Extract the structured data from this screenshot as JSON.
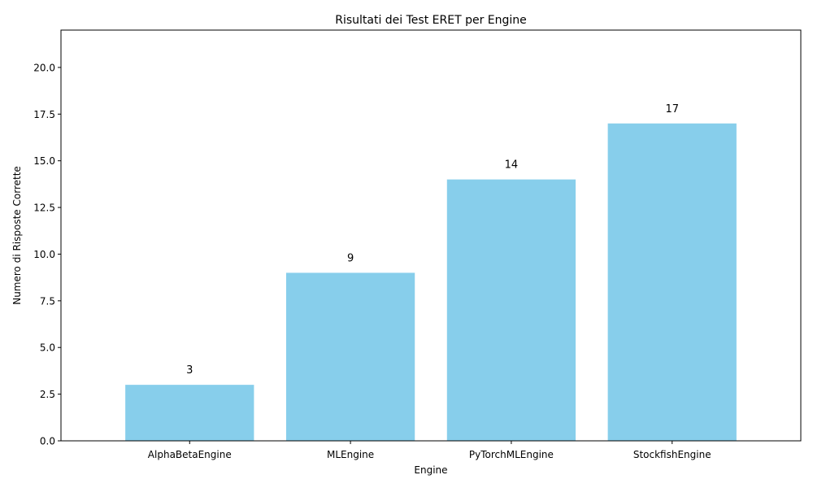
{
  "chart_data": {
    "type": "bar",
    "title": "Risultati dei Test ERET per Engine",
    "xlabel": "Engine",
    "ylabel": "Numero di Risposte Corrette",
    "categories": [
      "AlphaBetaEngine",
      "MLEngine",
      "PyTorchMLEngine",
      "StockfishEngine"
    ],
    "values": [
      3,
      9,
      14,
      17
    ],
    "data_labels": [
      "3",
      "9",
      "14",
      "17"
    ],
    "yticks": [
      0.0,
      2.5,
      5.0,
      7.5,
      10.0,
      12.5,
      15.0,
      17.5,
      20.0
    ],
    "ytick_labels": [
      "0.0",
      "2.5",
      "5.0",
      "7.5",
      "10.0",
      "12.5",
      "15.0",
      "17.5",
      "20.0"
    ],
    "ylim": [
      0,
      22
    ],
    "grid": false,
    "bar_color": "#87CEEB"
  }
}
